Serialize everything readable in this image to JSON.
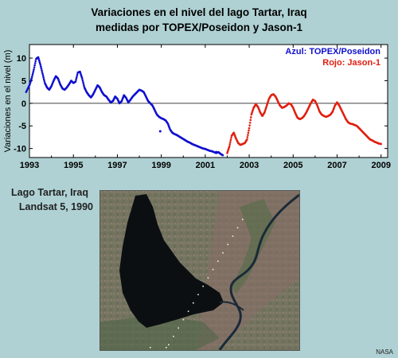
{
  "header": {
    "title_line1": "Variaciones en el nivel del lago Tartar, Iraq",
    "title_line2": "medidas por TOPEX/Poseidon y Jason-1"
  },
  "chart_data": {
    "type": "scatter",
    "title": "Variaciones en el nivel del lago Tartar, Iraq medidas por TOPEX/Poseidon y Jason-1",
    "ylabel": "Variaciones en el nivel (m)",
    "xlabel": "",
    "xlim": [
      1993,
      2009.3
    ],
    "ylim": [
      -12,
      13
    ],
    "xticks": [
      1993,
      1995,
      1997,
      1999,
      2001,
      2003,
      2005,
      2007,
      2009
    ],
    "yticks": [
      10,
      5,
      0,
      -5,
      -10
    ],
    "zero_line": true,
    "legend_position": "top-right",
    "series": [
      {
        "name": "Azul: TOPEX/Poseidon",
        "color": "#1010d0",
        "x": [
          1992.85,
          1993.0,
          1993.1,
          1993.2,
          1993.3,
          1993.4,
          1993.5,
          1993.6,
          1993.7,
          1993.8,
          1993.9,
          1994.0,
          1994.1,
          1994.2,
          1994.3,
          1994.4,
          1994.5,
          1994.6,
          1994.7,
          1994.8,
          1994.9,
          1995.0,
          1995.1,
          1995.2,
          1995.3,
          1995.4,
          1995.5,
          1995.6,
          1995.7,
          1995.8,
          1995.9,
          1996.0,
          1996.1,
          1996.2,
          1996.3,
          1996.4,
          1996.5,
          1996.6,
          1996.7,
          1996.8,
          1996.9,
          1997.0,
          1997.1,
          1997.2,
          1997.3,
          1997.4,
          1997.5,
          1997.6,
          1997.7,
          1997.8,
          1997.9,
          1998.0,
          1998.1,
          1998.2,
          1998.3,
          1998.4,
          1998.5,
          1998.6,
          1998.7,
          1998.8,
          1998.9,
          1999.0,
          1999.1,
          1999.2,
          1999.3,
          1999.4,
          1999.5,
          1999.6,
          1999.7,
          1999.8,
          1999.9,
          2000.0,
          2000.1,
          2000.2,
          2000.3,
          2000.4,
          2000.5,
          2000.6,
          2000.7,
          2000.8,
          2000.9,
          2001.0,
          2001.1,
          2001.2,
          2001.3,
          2001.4,
          2001.5,
          2001.6,
          2001.7,
          2001.8
        ],
        "y": [
          2.5,
          4.0,
          5.5,
          7.5,
          9.8,
          10.2,
          8.5,
          6.5,
          4.5,
          3.5,
          3.0,
          3.8,
          5.0,
          6.0,
          5.5,
          4.2,
          3.3,
          3.0,
          3.5,
          4.2,
          5.0,
          4.5,
          4.8,
          6.8,
          7.0,
          5.5,
          3.5,
          2.5,
          1.8,
          1.3,
          2.0,
          3.0,
          4.0,
          3.5,
          2.5,
          1.8,
          1.5,
          0.8,
          0.2,
          0.5,
          1.5,
          1.0,
          0.0,
          0.5,
          1.8,
          1.2,
          0.2,
          0.8,
          1.5,
          2.0,
          2.5,
          3.0,
          2.8,
          2.5,
          1.5,
          0.5,
          0.0,
          -0.5,
          -1.5,
          -2.5,
          -3.0,
          -3.3,
          -3.5,
          -3.8,
          -4.5,
          -5.8,
          -6.5,
          -6.8,
          -7.0,
          -7.3,
          -7.6,
          -7.9,
          -8.2,
          -8.5,
          -8.7,
          -9.0,
          -9.2,
          -9.4,
          -9.6,
          -9.8,
          -10.0,
          -10.1,
          -10.3,
          -10.5,
          -10.6,
          -10.8,
          -11.0,
          -10.8,
          -11.2,
          -11.5
        ]
      },
      {
        "name": "Rojo: Jason-1",
        "color": "#e02010",
        "x": [
          2002.0,
          2002.1,
          2002.2,
          2002.3,
          2002.4,
          2002.5,
          2002.6,
          2002.7,
          2002.8,
          2002.9,
          2003.0,
          2003.1,
          2003.2,
          2003.3,
          2003.4,
          2003.5,
          2003.6,
          2003.7,
          2003.8,
          2003.9,
          2004.0,
          2004.1,
          2004.2,
          2004.3,
          2004.4,
          2004.5,
          2004.6,
          2004.7,
          2004.8,
          2004.9,
          2005.0,
          2005.1,
          2005.2,
          2005.3,
          2005.4,
          2005.5,
          2005.6,
          2005.7,
          2005.8,
          2005.9,
          2006.0,
          2006.1,
          2006.2,
          2006.3,
          2006.4,
          2006.5,
          2006.6,
          2006.7,
          2006.8,
          2006.9,
          2007.0,
          2007.1,
          2007.2,
          2007.3,
          2007.4,
          2007.5,
          2007.6,
          2007.7,
          2007.8,
          2007.9,
          2008.0,
          2008.1,
          2008.2,
          2008.3,
          2008.4,
          2008.5,
          2008.6,
          2008.7,
          2008.8,
          2008.9,
          2009.0
        ],
        "y": [
          -11.0,
          -9.5,
          -7.2,
          -6.5,
          -7.8,
          -8.8,
          -9.2,
          -9.0,
          -8.8,
          -8.0,
          -5.5,
          -2.5,
          -1.0,
          -0.2,
          -0.8,
          -2.0,
          -2.8,
          -2.0,
          -0.5,
          1.0,
          1.8,
          2.0,
          1.5,
          0.5,
          -0.5,
          -1.0,
          -0.8,
          -0.5,
          0.0,
          -0.2,
          -1.0,
          -2.2,
          -3.2,
          -3.5,
          -3.3,
          -2.8,
          -2.0,
          -1.0,
          0.0,
          0.8,
          0.5,
          -0.5,
          -1.8,
          -2.5,
          -2.8,
          -3.0,
          -2.8,
          -2.5,
          -1.8,
          -0.5,
          0.2,
          -0.5,
          -1.5,
          -2.5,
          -3.5,
          -4.2,
          -4.5,
          -4.6,
          -4.8,
          -5.0,
          -5.5,
          -6.0,
          -6.5,
          -7.0,
          -7.5,
          -8.0,
          -8.2,
          -8.5,
          -8.7,
          -8.9,
          -9.0
        ]
      }
    ],
    "outliers": {
      "x": [
        1998.95,
        2001.5
      ],
      "y": [
        -6.2,
        -10.8
      ]
    }
  },
  "photo": {
    "caption_line1": "Lago Tartar, Iraq",
    "caption_line2": "Landsat 5, 1990",
    "land_color": "#7a7a66",
    "lake_color": "#0c0f12",
    "river_color": "#1a2a38",
    "track_color": "#f2f2d8"
  },
  "credit": "NASA"
}
